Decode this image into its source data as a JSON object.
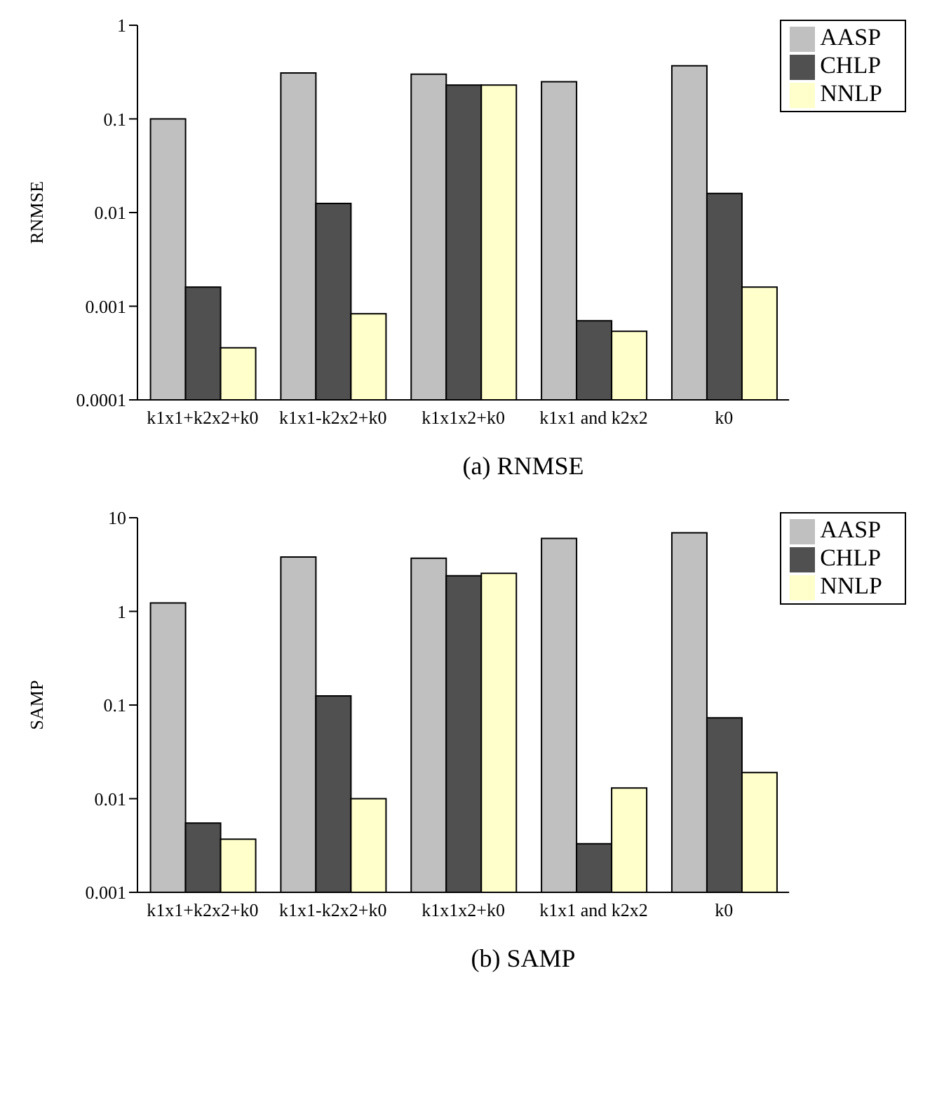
{
  "chart_data": [
    {
      "type": "bar",
      "ylabel": "RNMSE",
      "annotations": [
        "(a) RNMSE"
      ],
      "categories": [
        "k1x1+k2x2+k0",
        "k1x1-k2x2+k0",
        "k1x1x2+k0",
        "k1x1 and k2x2",
        "k0"
      ],
      "series": [
        {
          "name": "AASP",
          "color": "#c0c0c0",
          "values": [
            0.1,
            0.31,
            0.3,
            0.25,
            0.37
          ]
        },
        {
          "name": "CHLP",
          "color": "#505050",
          "values": [
            0.0016,
            0.0125,
            0.23,
            0.0007,
            0.016
          ]
        },
        {
          "name": "NNLP",
          "color": "#ffffcc",
          "values": [
            0.00036,
            0.00083,
            0.23,
            0.00054,
            0.0016
          ]
        }
      ],
      "log": "y",
      "ylim": [
        0.0001,
        1
      ],
      "yticks": [
        0.0001,
        0.001,
        0.01,
        0.1,
        1
      ],
      "legend": "top right"
    },
    {
      "type": "bar",
      "ylabel": "SAMP",
      "annotations": [
        "(b) SAMP"
      ],
      "categories": [
        "k1x1+k2x2+k0",
        "k1x1-k2x2+k0",
        "k1x1x2+k0",
        "k1x1 and k2x2",
        "k0"
      ],
      "series": [
        {
          "name": "AASP",
          "color": "#c0c0c0",
          "values": [
            1.23,
            3.8,
            3.7,
            6.0,
            6.9
          ]
        },
        {
          "name": "CHLP",
          "color": "#505050",
          "values": [
            0.0055,
            0.125,
            2.4,
            0.0033,
            0.073
          ]
        },
        {
          "name": "NNLP",
          "color": "#ffffcc",
          "values": [
            0.0037,
            0.01,
            2.55,
            0.013,
            0.019
          ]
        }
      ],
      "log": "y",
      "ylim": [
        0.001,
        10
      ],
      "yticks": [
        0.001,
        0.01,
        0.1,
        1,
        10
      ],
      "legend": "top right"
    }
  ]
}
